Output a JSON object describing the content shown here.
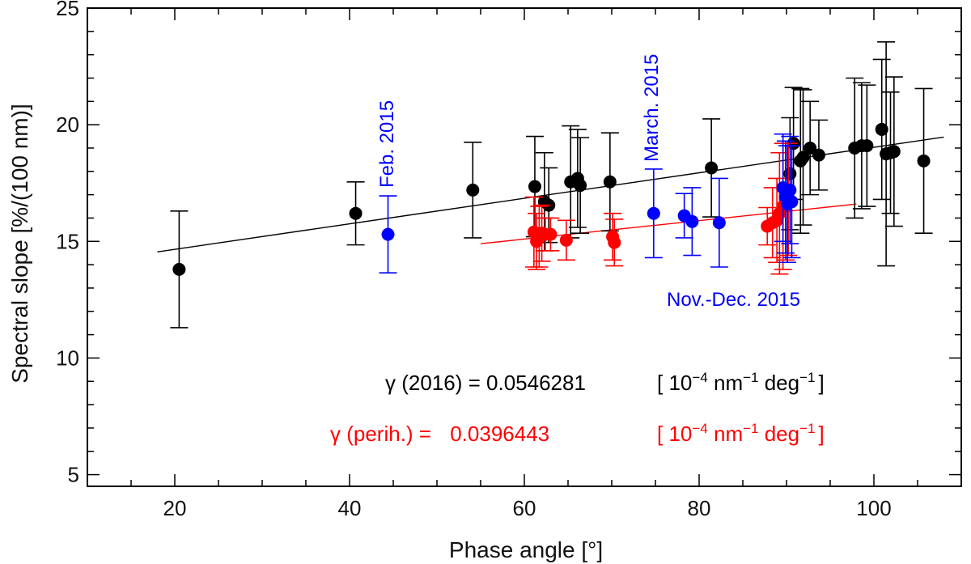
{
  "chart_data": {
    "type": "scatter",
    "title": "",
    "xlabel": "Phase angle [°]",
    "ylabel": "Spectral slope [%/(100 nm)]",
    "xlim": [
      10,
      110
    ],
    "ylim": [
      4.5,
      25
    ],
    "x_ticks": [
      20,
      40,
      60,
      80,
      100
    ],
    "y_ticks": [
      5,
      10,
      15,
      20,
      25
    ],
    "grid": false,
    "series": [
      {
        "name": "2016",
        "color": "#000000",
        "points": [
          {
            "x": 20.5,
            "y": 13.8,
            "err": 2.5
          },
          {
            "x": 40.7,
            "y": 16.2,
            "err": 1.35
          },
          {
            "x": 54.1,
            "y": 17.2,
            "err": 2.05
          },
          {
            "x": 61.2,
            "y": 17.35,
            "err": 2.15
          },
          {
            "x": 62.3,
            "y": 16.7,
            "err": 2.1
          },
          {
            "x": 62.8,
            "y": 16.55,
            "err": 1.6
          },
          {
            "x": 65.3,
            "y": 17.55,
            "err": 2.4
          },
          {
            "x": 66.1,
            "y": 17.7,
            "err": 2.1
          },
          {
            "x": 66.4,
            "y": 17.4,
            "err": 2.05
          },
          {
            "x": 69.8,
            "y": 17.55,
            "err": 2.1
          },
          {
            "x": 81.4,
            "y": 18.15,
            "err": 2.1
          },
          {
            "x": 90.4,
            "y": 17.9,
            "err": 2.4
          },
          {
            "x": 90.8,
            "y": 19.2,
            "err": 2.4
          },
          {
            "x": 91.6,
            "y": 18.45,
            "err": 3.1
          },
          {
            "x": 91.9,
            "y": 18.6,
            "err": 2.9
          },
          {
            "x": 92.7,
            "y": 19.0,
            "err": 2.0
          },
          {
            "x": 93.7,
            "y": 18.7,
            "err": 1.5
          },
          {
            "x": 97.8,
            "y": 19.0,
            "err": 3.0
          },
          {
            "x": 98.6,
            "y": 19.1,
            "err": 2.7
          },
          {
            "x": 99.2,
            "y": 19.1,
            "err": 2.6
          },
          {
            "x": 100.9,
            "y": 19.8,
            "err": 3.0
          },
          {
            "x": 101.4,
            "y": 18.75,
            "err": 4.8
          },
          {
            "x": 101.9,
            "y": 18.8,
            "err": 2.6
          },
          {
            "x": 102.3,
            "y": 18.85,
            "err": 3.2
          },
          {
            "x": 105.7,
            "y": 18.45,
            "err": 3.1
          }
        ]
      },
      {
        "name": "perihelion",
        "color": "#ff0000",
        "points": [
          {
            "x": 61.1,
            "y": 15.4,
            "err": 1.5
          },
          {
            "x": 61.4,
            "y": 15.0,
            "err": 1.2
          },
          {
            "x": 61.7,
            "y": 15.2,
            "err": 1.3
          },
          {
            "x": 62.0,
            "y": 15.35,
            "err": 1.2
          },
          {
            "x": 62.4,
            "y": 15.3,
            "err": 0.7
          },
          {
            "x": 63.0,
            "y": 15.3,
            "err": 0.7
          },
          {
            "x": 64.8,
            "y": 15.05,
            "err": 0.85
          },
          {
            "x": 70.1,
            "y": 15.2,
            "err": 1.0
          },
          {
            "x": 70.3,
            "y": 14.95,
            "err": 1.0
          },
          {
            "x": 87.8,
            "y": 15.65,
            "err": 0.8
          },
          {
            "x": 88.4,
            "y": 15.8,
            "err": 1.5
          },
          {
            "x": 88.9,
            "y": 15.9,
            "err": 1.8
          },
          {
            "x": 89.2,
            "y": 16.2,
            "err": 2.6
          },
          {
            "x": 89.6,
            "y": 16.5,
            "err": 2.7
          },
          {
            "x": 89.9,
            "y": 16.7,
            "err": 2.5
          },
          {
            "x": 90.2,
            "y": 16.8,
            "err": 2.4
          }
        ]
      },
      {
        "name": "2015",
        "color": "#0000ff",
        "points": [
          {
            "x": 44.4,
            "y": 15.3,
            "err": 1.65
          },
          {
            "x": 74.8,
            "y": 16.2,
            "err": 1.9
          },
          {
            "x": 78.3,
            "y": 16.1,
            "err": 0.95
          },
          {
            "x": 79.2,
            "y": 15.85,
            "err": 1.45
          },
          {
            "x": 82.3,
            "y": 15.8,
            "err": 1.9
          },
          {
            "x": 89.6,
            "y": 17.3,
            "err": 2.3
          },
          {
            "x": 89.9,
            "y": 16.9,
            "err": 2.4
          },
          {
            "x": 90.1,
            "y": 16.6,
            "err": 2.5
          },
          {
            "x": 90.4,
            "y": 17.2,
            "err": 2.3
          },
          {
            "x": 90.6,
            "y": 16.7,
            "err": 2.4
          }
        ]
      }
    ],
    "fits": [
      {
        "name": "fit 2016",
        "color": "#000000",
        "x": [
          18,
          108
        ],
        "y": [
          14.55,
          19.47
        ]
      },
      {
        "name": "fit perihelion",
        "color": "#ff0000",
        "x": [
          55,
          98
        ],
        "y": [
          14.9,
          16.6
        ]
      }
    ],
    "annotations": [
      {
        "id": "feb",
        "text": "Feb. 2015",
        "color": "#0000ff"
      },
      {
        "id": "march",
        "text": "March. 2015",
        "color": "#0000ff"
      },
      {
        "id": "novdec",
        "text": "Nov.-Dec. 2015",
        "color": "#0000ff"
      }
    ]
  },
  "formulas": {
    "black": {
      "color": "#000000",
      "gamma": "γ",
      "label": " (2016) = ",
      "value": "0.0546281",
      "units_pre": "[ 10",
      "units_exp1": "−4",
      "units_nm": " nm",
      "units_exp2": "−1",
      "units_deg": " deg",
      "units_exp3": "−1",
      "units_post": "]"
    },
    "red": {
      "color": "#ff0000",
      "gamma": "γ",
      "label": " (perih.) = ",
      "value": "0.0396443",
      "units_pre": "[ 10",
      "units_exp1": "−4",
      "units_nm": " nm",
      "units_exp2": "−1",
      "units_deg": " deg",
      "units_exp3": "−1",
      "units_post": "]"
    }
  }
}
